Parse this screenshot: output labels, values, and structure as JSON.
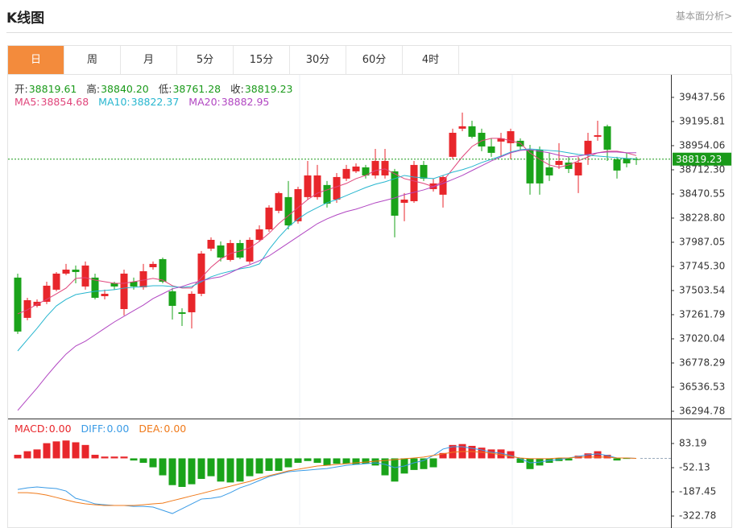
{
  "header": {
    "title": "K线图",
    "link": "基本面分析>"
  },
  "tabs": {
    "items": [
      "日",
      "周",
      "月",
      "5分",
      "15分",
      "30分",
      "60分",
      "4时"
    ],
    "active": 0
  },
  "chart_data": [
    {
      "type": "candlestick",
      "info": [
        {
          "label": "开:",
          "value": "38819.61"
        },
        {
          "label": "高:",
          "value": "38840.20"
        },
        {
          "label": "低:",
          "value": "38761.28"
        },
        {
          "label": "收:",
          "value": "38819.23"
        }
      ],
      "info_color": "#1a9a1a",
      "colors": {
        "up": "#e8262b",
        "down": "#1aa31a"
      },
      "ohlc": [
        [
          37633,
          37673,
          37069,
          37093
        ],
        [
          37230,
          37431,
          37206,
          37407
        ],
        [
          37350,
          37415,
          37334,
          37391
        ],
        [
          37391,
          37592,
          37367,
          37552
        ],
        [
          37512,
          37689,
          37496,
          37673
        ],
        [
          37673,
          37770,
          37657,
          37713
        ],
        [
          37713,
          37754,
          37576,
          37689
        ],
        [
          37544,
          37794,
          37512,
          37754
        ],
        [
          37633,
          37673,
          37415,
          37431
        ],
        [
          37447,
          37512,
          37415,
          37471
        ],
        [
          37576,
          37592,
          37512,
          37544
        ],
        [
          37318,
          37713,
          37254,
          37673
        ],
        [
          37592,
          37633,
          37512,
          37544
        ],
        [
          37536,
          37770,
          37512,
          37697
        ],
        [
          37737,
          37794,
          37713,
          37770
        ],
        [
          37818,
          37834,
          37576,
          37592
        ],
        [
          37496,
          37528,
          37213,
          37350
        ],
        [
          37286,
          37326,
          37149,
          37270
        ],
        [
          37286,
          37496,
          37124,
          37471
        ],
        [
          37471,
          37899,
          37447,
          37874
        ],
        [
          37923,
          38036,
          37899,
          38011
        ],
        [
          37955,
          37995,
          37794,
          37834
        ],
        [
          37810,
          38011,
          37794,
          37979
        ],
        [
          37979,
          38011,
          37818,
          37834
        ],
        [
          37794,
          38036,
          37770,
          38011
        ],
        [
          38011,
          38156,
          37995,
          38116
        ],
        [
          38116,
          38358,
          38092,
          38334
        ],
        [
          38302,
          38495,
          38277,
          38479
        ],
        [
          38439,
          38600,
          38116,
          38156
        ],
        [
          38197,
          38543,
          38173,
          38519
        ],
        [
          38439,
          38801,
          38414,
          38656
        ],
        [
          38439,
          38761,
          38414,
          38656
        ],
        [
          38560,
          38600,
          38334,
          38374
        ],
        [
          38414,
          38680,
          38382,
          38640
        ],
        [
          38624,
          38761,
          38600,
          38721
        ],
        [
          38697,
          38777,
          38680,
          38745
        ],
        [
          38737,
          38761,
          38624,
          38656
        ],
        [
          38656,
          38922,
          38624,
          38801
        ],
        [
          38656,
          38922,
          38624,
          38801
        ],
        [
          38697,
          38721,
          38036,
          38253
        ],
        [
          38382,
          38479,
          38197,
          38414
        ],
        [
          38398,
          38801,
          38382,
          38761
        ],
        [
          38761,
          38801,
          38600,
          38624
        ],
        [
          38519,
          38624,
          38495,
          38576
        ],
        [
          38463,
          38656,
          38334,
          38640
        ],
        [
          38842,
          39124,
          38817,
          39083
        ],
        [
          39124,
          39285,
          39099,
          39148
        ],
        [
          39148,
          39204,
          39027,
          39043
        ],
        [
          39083,
          39124,
          38898,
          38946
        ],
        [
          38946,
          39027,
          38842,
          38882
        ],
        [
          38995,
          39083,
          38842,
          39027
        ],
        [
          38979,
          39124,
          38817,
          39099
        ],
        [
          39003,
          39027,
          38914,
          38946
        ],
        [
          38914,
          38962,
          38463,
          38576
        ],
        [
          38914,
          38946,
          38463,
          38576
        ],
        [
          38737,
          38882,
          38600,
          38656
        ],
        [
          38761,
          38979,
          38721,
          38801
        ],
        [
          38785,
          38842,
          38680,
          38721
        ],
        [
          38656,
          38842,
          38479,
          38785
        ],
        [
          38866,
          39083,
          38761,
          39003
        ],
        [
          39043,
          39204,
          39003,
          39059
        ],
        [
          39148,
          39164,
          38801,
          38914
        ],
        [
          38817,
          38842,
          38624,
          38705
        ],
        [
          38826,
          38882,
          38737,
          38777
        ],
        [
          38819.61,
          38840.2,
          38761.28,
          38819.23
        ]
      ],
      "series": [
        {
          "name": "MA5:",
          "last": "38854.68",
          "color": "#e0457b",
          "values": [
            37270,
            37310,
            37367,
            37415,
            37471,
            37528,
            37625,
            37633,
            37608,
            37592,
            37576,
            37576,
            37592,
            37608,
            37625,
            37608,
            37552,
            37528,
            37528,
            37633,
            37737,
            37818,
            37874,
            37899,
            37931,
            37995,
            38076,
            38173,
            38253,
            38334,
            38414,
            38479,
            38511,
            38543,
            38576,
            38624,
            38656,
            38705,
            38721,
            38672,
            38624,
            38600,
            38576,
            38543,
            38600,
            38721,
            38842,
            38946,
            39003,
            39027,
            39027,
            39003,
            38979,
            38882,
            38817,
            38761,
            38737,
            38761,
            38801,
            38842,
            38882,
            38898,
            38898,
            38882,
            38854.68
          ]
        },
        {
          "name": "MA10:",
          "last": "38822.37",
          "color": "#27b6cf",
          "values": [
            36899,
            37012,
            37125,
            37246,
            37350,
            37415,
            37463,
            37480,
            37496,
            37504,
            37512,
            37528,
            37536,
            37544,
            37552,
            37552,
            37544,
            37536,
            37544,
            37592,
            37641,
            37673,
            37697,
            37721,
            37737,
            37770,
            37915,
            38036,
            38140,
            38221,
            38285,
            38334,
            38382,
            38414,
            38455,
            38495,
            38535,
            38568,
            38592,
            38624,
            38656,
            38640,
            38632,
            38624,
            38656,
            38689,
            38713,
            38745,
            38785,
            38817,
            38850,
            38890,
            38914,
            38922,
            38914,
            38906,
            38898,
            38882,
            38866,
            38858,
            38850,
            38842,
            38834,
            38826,
            38822.37
          ]
        },
        {
          "name": "MA20:",
          "last": "38882.95",
          "color": "#b146c2",
          "values": [
            36303,
            36416,
            36528,
            36649,
            36762,
            36867,
            36948,
            36996,
            37060,
            37125,
            37189,
            37246,
            37302,
            37358,
            37423,
            37471,
            37520,
            37544,
            37576,
            37600,
            37625,
            37641,
            37681,
            37729,
            37762,
            37802,
            37850,
            37915,
            37979,
            38044,
            38108,
            38173,
            38221,
            38261,
            38294,
            38318,
            38350,
            38382,
            38406,
            38431,
            38463,
            38487,
            38511,
            38543,
            38576,
            38616,
            38656,
            38705,
            38753,
            38801,
            38842,
            38882,
            38906,
            38914,
            38898,
            38882,
            38858,
            38842,
            38850,
            38866,
            38882,
            38890,
            38890,
            38882,
            38882.95
          ]
        }
      ],
      "last_price": {
        "value": 38819.23,
        "label": "38819.23",
        "color": "#1a9a1a"
      },
      "ylim": [
        36222,
        39663
      ],
      "yticks": [
        39437.56,
        39195.81,
        38954.06,
        {
          "value": 38712.3,
          "label": "38712.30"
        },
        38470.55,
        {
          "value": 38228.8,
          "label": "38228.80"
        },
        37987.05,
        {
          "value": 37745.3,
          "label": "37745.30"
        },
        37503.54,
        37261.79,
        37020.04,
        36778.29,
        36536.53,
        36294.78
      ]
    },
    {
      "type": "macd",
      "colors": {
        "up": "#e8262b",
        "down": "#1aa31a"
      },
      "series": [
        {
          "name": "MACD:",
          "last": "0.00",
          "color": "#e8262b",
          "values": [
            20,
            40,
            50,
            85,
            95,
            100,
            90,
            75,
            20,
            10,
            10,
            10,
            -12,
            -25,
            -50,
            -95,
            -150,
            -160,
            -145,
            -115,
            -100,
            -130,
            -135,
            -130,
            -100,
            -85,
            -70,
            -70,
            -50,
            -25,
            -15,
            -25,
            -40,
            -30,
            -30,
            -35,
            -30,
            -40,
            -95,
            -130,
            -85,
            -65,
            -60,
            -50,
            30,
            75,
            80,
            70,
            60,
            50,
            50,
            40,
            -25,
            -60,
            -40,
            -25,
            -15,
            -12,
            15,
            28,
            40,
            20,
            -12,
            -3,
            0
          ]
        },
        {
          "name": "DIFF:",
          "last": "0.00",
          "color": "#3a9be6",
          "values": [
            -174,
            -165,
            -160,
            -165,
            -169,
            -183,
            -224,
            -237,
            -255,
            -260,
            -264,
            -264,
            -269,
            -269,
            -273,
            -291,
            -309,
            -282,
            -255,
            -228,
            -224,
            -215,
            -192,
            -165,
            -147,
            -124,
            -102,
            -88,
            -75,
            -70,
            -66,
            -61,
            -57,
            -48,
            -39,
            -34,
            -30,
            -25,
            -34,
            -52,
            -43,
            -25,
            -12,
            16,
            52,
            65,
            65,
            56,
            47,
            34,
            29,
            16,
            -2,
            -25,
            -21,
            -12,
            -7,
            2,
            11,
            20,
            25,
            16,
            2,
            2,
            0
          ]
        },
        {
          "name": "DEA:",
          "last": "0.00",
          "color": "#f07a1a",
          "values": [
            -192,
            -192,
            -197,
            -206,
            -219,
            -233,
            -246,
            -255,
            -260,
            -264,
            -264,
            -264,
            -264,
            -260,
            -255,
            -251,
            -237,
            -224,
            -210,
            -197,
            -183,
            -169,
            -156,
            -142,
            -129,
            -111,
            -97,
            -84,
            -70,
            -61,
            -52,
            -43,
            -39,
            -34,
            -30,
            -25,
            -21,
            -16,
            -12,
            -7,
            -2,
            2,
            7,
            16,
            25,
            34,
            38,
            38,
            34,
            29,
            20,
            11,
            2,
            -2,
            -2,
            -2,
            2,
            2,
            7,
            7,
            7,
            7,
            2,
            2,
            0
          ]
        }
      ],
      "ylim": [
        -372,
        214
      ],
      "yticks": [
        83.19,
        -52.13,
        -187.45,
        -322.78
      ]
    }
  ]
}
